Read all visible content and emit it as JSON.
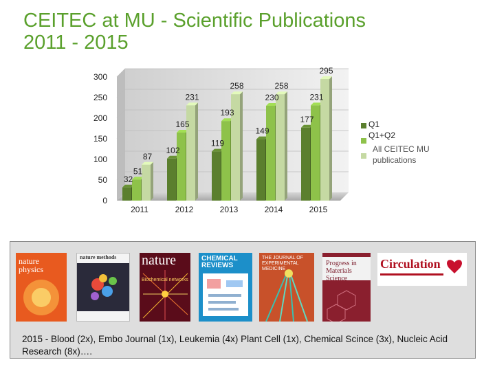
{
  "title": "CEITEC at MU - Scientific Publications\n2011 - 2015",
  "legend": [
    {
      "label": "Q1",
      "color": "#5b7f2e"
    },
    {
      "label": "Q1+Q2",
      "color": "#8ec24a"
    },
    {
      "label": "All CEITEC MU\npublications",
      "color": "#c5d9a3"
    }
  ],
  "chart_data": {
    "type": "bar",
    "categories": [
      "2011",
      "2012",
      "2013",
      "2014",
      "2015"
    ],
    "series": [
      {
        "name": "Q1",
        "values": [
          32,
          102,
          119,
          149,
          177
        ]
      },
      {
        "name": "Q1+Q2",
        "values": [
          51,
          165,
          193,
          230,
          231
        ]
      },
      {
        "name": "All CEITEC MU publications",
        "values": [
          87,
          231,
          258,
          258,
          295
        ]
      }
    ],
    "yticks": [
      0,
      50,
      100,
      150,
      200,
      250,
      300
    ],
    "ylim": [
      0,
      300
    ],
    "colors": [
      "#5b7f2e",
      "#8ec24a",
      "#c5d9a3"
    ],
    "grid": true,
    "legend_position": "right"
  },
  "covers": [
    {
      "name": "nature-physics-cover",
      "text": "nature physics",
      "bg": "#e85a1f"
    },
    {
      "name": "nature-methods-cover",
      "text": "nature methods",
      "bg": "#f2f2f2"
    },
    {
      "name": "nature-cover",
      "text": "nature",
      "sub": "Biochemical networks",
      "bg": "#6a1020"
    },
    {
      "name": "chemical-reviews-cover",
      "text": "CHEMICAL REVIEWS",
      "bg": "#1c8fc9"
    },
    {
      "name": "journal-experimental-medicine-cover",
      "text": "THE JOURNAL OF EXPERIMENTAL MEDICINE",
      "bg": "#c8512a"
    },
    {
      "name": "progress-materials-science-cover",
      "text": "Progress in Materials Science",
      "bg": "#8a1f2e"
    },
    {
      "name": "circulation-cover",
      "text": "Circulation",
      "bg": "#ffffff"
    }
  ],
  "caption": "2015 - Blood (2x), Embo Journal (1x), Leukemia (4x) Plant Cell (1x), Chemical Scince (3x), Nucleic Acid Research (8x)…."
}
